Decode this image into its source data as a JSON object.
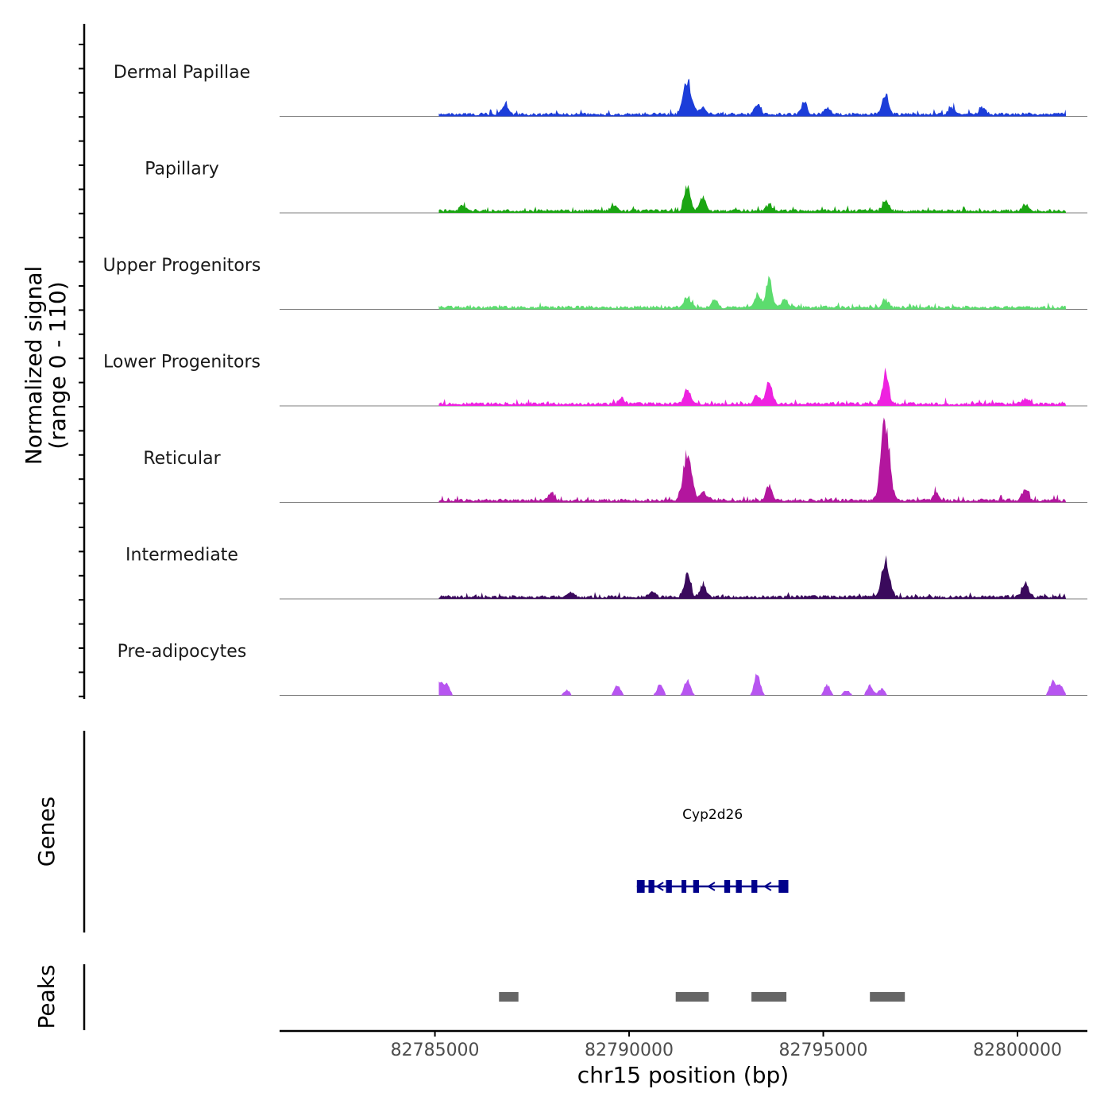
{
  "chart_data": {
    "type": "area",
    "chromosome": "chr15",
    "xlabel": "chr15 position (bp)",
    "ylabel": "Normalized signal",
    "ylabel_range": "(range 0 - 110)",
    "xlim": [
      82781000,
      82801800
    ],
    "ylim": [
      0,
      110
    ],
    "x_ticks": [
      {
        "value": 82785000,
        "label": "82785000"
      },
      {
        "value": 82790000,
        "label": "82790000"
      },
      {
        "value": 82795000,
        "label": "82795000"
      },
      {
        "value": 82800000,
        "label": "82800000"
      }
    ],
    "signal_range": [
      82785100,
      82801250
    ],
    "background_level": 4,
    "series": [
      {
        "name": "Dermal Papillae",
        "color": "#1C3DD9",
        "peaks": [
          [
            82786800,
            12
          ],
          [
            82791500,
            45
          ],
          [
            82791900,
            10
          ],
          [
            82793300,
            14
          ],
          [
            82794500,
            15
          ],
          [
            82795100,
            9
          ],
          [
            82796600,
            28
          ],
          [
            82798300,
            9
          ],
          [
            82799100,
            10
          ]
        ]
      },
      {
        "name": "Papillary",
        "color": "#1AA512",
        "peaks": [
          [
            82785700,
            6
          ],
          [
            82789600,
            7
          ],
          [
            82791500,
            34
          ],
          [
            82791900,
            18
          ],
          [
            82793600,
            9
          ],
          [
            82796600,
            14
          ],
          [
            82800200,
            8
          ]
        ]
      },
      {
        "name": "Upper Progenitors",
        "color": "#5CDC6E",
        "peaks": [
          [
            82791500,
            14
          ],
          [
            82792200,
            9
          ],
          [
            82793300,
            18
          ],
          [
            82793600,
            36
          ],
          [
            82794000,
            12
          ],
          [
            82796600,
            11
          ]
        ]
      },
      {
        "name": "Lower Progenitors",
        "color": "#EE22E0",
        "peaks": [
          [
            82789800,
            7
          ],
          [
            82791500,
            20
          ],
          [
            82793300,
            10
          ],
          [
            82793600,
            33
          ],
          [
            82796600,
            40
          ],
          [
            82800200,
            8
          ]
        ]
      },
      {
        "name": "Reticular",
        "color": "#B3169E",
        "peaks": [
          [
            82788000,
            12
          ],
          [
            82791500,
            65
          ],
          [
            82791900,
            12
          ],
          [
            82793600,
            20
          ],
          [
            82796600,
            108
          ],
          [
            82797900,
            10
          ],
          [
            82800200,
            16
          ]
        ]
      },
      {
        "name": "Intermediate",
        "color": "#3A0A5C",
        "peaks": [
          [
            82788500,
            5
          ],
          [
            82790600,
            6
          ],
          [
            82791500,
            30
          ],
          [
            82791900,
            15
          ],
          [
            82796600,
            46
          ],
          [
            82800200,
            18
          ]
        ]
      },
      {
        "name": "Pre-adipocytes",
        "color": "#B755F0",
        "peaks": [
          [
            82785100,
            20
          ],
          [
            82785300,
            17
          ],
          [
            82788400,
            7
          ],
          [
            82789700,
            15
          ],
          [
            82790800,
            15
          ],
          [
            82791500,
            22
          ],
          [
            82793300,
            30
          ],
          [
            82795100,
            14
          ],
          [
            82795600,
            7
          ],
          [
            82796200,
            13
          ],
          [
            82796500,
            9
          ],
          [
            82800900,
            18
          ],
          [
            82801100,
            14
          ]
        ]
      }
    ],
    "genes": [
      {
        "name": "Cyp2d26",
        "start": 82790200,
        "end": 82794100,
        "strand": "-",
        "exons": [
          [
            82790200,
            82790400
          ],
          [
            82790500,
            82790650
          ],
          [
            82790950,
            82791100
          ],
          [
            82791350,
            82791450
          ],
          [
            82791650,
            82791800
          ],
          [
            82792450,
            82792600
          ],
          [
            82792750,
            82792900
          ],
          [
            82793150,
            82793300
          ],
          [
            82793850,
            82794100
          ]
        ]
      }
    ],
    "peaks_track": {
      "color": "#666666",
      "regions": [
        [
          82786650,
          82787150
        ],
        [
          82791200,
          82792050
        ],
        [
          82793150,
          82794050
        ],
        [
          82796200,
          82797100
        ]
      ]
    },
    "panel_titles": {
      "genes": "Genes",
      "peaks": "Peaks"
    }
  }
}
